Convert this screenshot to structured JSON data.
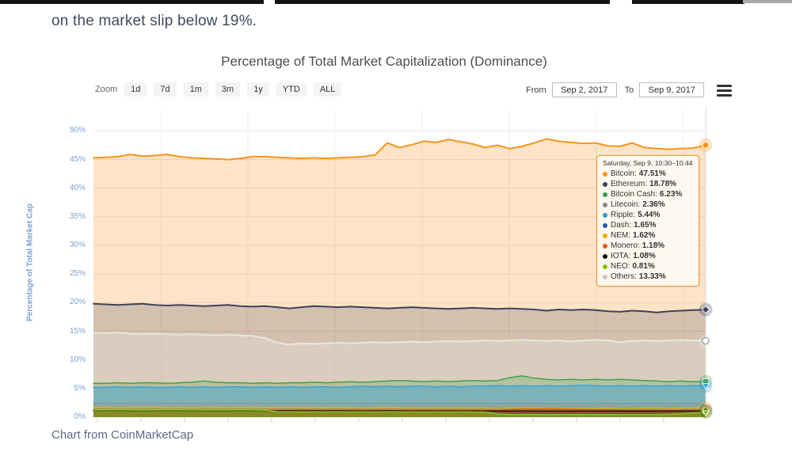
{
  "page": {
    "article_text": "on the market slip below 19%.",
    "footer_text": "Chart from CoinMarketCap"
  },
  "chart": {
    "title": "Percentage of Total Market Capitalization (Dominance)",
    "controls": {
      "zoom_label": "Zoom",
      "zoom_buttons": [
        "1d",
        "7d",
        "1m",
        "3m",
        "1y",
        "YTD",
        "ALL"
      ],
      "from_label": "From",
      "from_value": "Sep 2, 2017",
      "to_label": "To",
      "to_value": "Sep 9, 2017",
      "context_menu_icon": "hamburger-icon"
    },
    "y_axis": {
      "title": "Percentage of Total Market Cap",
      "tick_labels": [
        "0%",
        "5%",
        "10%",
        "15%",
        "20%",
        "25%",
        "30%",
        "35%",
        "40%",
        "45%",
        "50%"
      ]
    }
  },
  "tooltip": {
    "header": "Saturday, Sep 9, 10:30–10:44",
    "items": [
      {
        "name": "Bitcoin",
        "value": "47.51%",
        "color": "#f7941c"
      },
      {
        "name": "Ethereum",
        "value": "18.78%",
        "color": "#3f415c"
      },
      {
        "name": "Bitcoin Cash",
        "value": "6.23%",
        "color": "#35a345"
      },
      {
        "name": "Litecoin",
        "value": "2.36%",
        "color": "#8a8a8a"
      },
      {
        "name": "Ripple",
        "value": "5.44%",
        "color": "#2f9ad0"
      },
      {
        "name": "Dash",
        "value": "1.65%",
        "color": "#2059ae"
      },
      {
        "name": "NEM",
        "value": "1.62%",
        "color": "#f2aa0c"
      },
      {
        "name": "Monero",
        "value": "1.18%",
        "color": "#e4581f"
      },
      {
        "name": "IOTA",
        "value": "1.08%",
        "color": "#111111"
      },
      {
        "name": "NEO",
        "value": "0.81%",
        "color": "#86c100"
      },
      {
        "name": "Others",
        "value": "13.33%",
        "color": "#c8c8c8"
      }
    ]
  },
  "chart_data": {
    "type": "area",
    "title": "Percentage of Total Market Capitalization (Dominance)",
    "xlabel": "",
    "ylabel": "Percentage of Total Market Cap",
    "ylim": [
      0,
      50
    ],
    "x_range": [
      "Sep 2, 2017",
      "Sep 9, 2017"
    ],
    "grid": true,
    "legend_position": "tooltip",
    "series": [
      {
        "name": "Bitcoin",
        "color": "#f7941c",
        "fill_opacity": 0.25,
        "line_width": 2,
        "marker": "circle",
        "end_value": 47.51,
        "values": [
          45.3,
          45.4,
          45.5,
          45.9,
          45.6,
          45.7,
          45.9,
          45.5,
          45.3,
          45.2,
          45.1,
          45.0,
          45.2,
          45.5,
          45.5,
          45.4,
          45.3,
          45.2,
          45.3,
          45.2,
          45.3,
          45.4,
          45.5,
          45.8,
          47.9,
          47.1,
          47.6,
          48.2,
          48.0,
          48.5,
          48.1,
          47.7,
          47.1,
          47.5,
          46.9,
          47.3,
          47.9,
          48.6,
          48.2,
          48.0,
          47.8,
          47.9,
          47.4,
          47.3,
          47.9,
          47.1,
          46.9,
          46.8,
          46.9,
          47.0,
          47.51
        ]
      },
      {
        "name": "Ethereum",
        "color": "#3f415c",
        "fill_opacity": 0.22,
        "line_width": 2,
        "marker": "diamond",
        "end_value": 18.78,
        "values": [
          19.8,
          19.7,
          19.6,
          19.7,
          19.8,
          19.6,
          19.5,
          19.6,
          19.5,
          19.4,
          19.5,
          19.6,
          19.4,
          19.3,
          19.4,
          19.2,
          19.0,
          19.2,
          19.4,
          19.3,
          19.2,
          19.3,
          19.2,
          19.1,
          19.0,
          19.1,
          19.2,
          19.1,
          19.0,
          18.9,
          19.0,
          19.1,
          19.0,
          18.9,
          19.0,
          18.9,
          18.8,
          18.6,
          18.8,
          18.7,
          18.8,
          18.7,
          18.5,
          18.4,
          18.6,
          18.5,
          18.3,
          18.5,
          18.6,
          18.7,
          18.78
        ]
      },
      {
        "name": "Others",
        "color": "#e8e6e0",
        "fill_opacity": 0.35,
        "line_width": 2,
        "marker": "circle-open",
        "end_value": 13.33,
        "values": [
          14.8,
          14.7,
          14.8,
          14.6,
          14.5,
          14.6,
          14.5,
          14.4,
          14.5,
          14.4,
          14.3,
          14.4,
          14.3,
          14.2,
          13.8,
          13.0,
          12.7,
          12.9,
          12.8,
          12.9,
          13.0,
          12.9,
          13.0,
          13.1,
          13.0,
          13.1,
          13.2,
          13.1,
          13.2,
          13.3,
          13.2,
          13.3,
          13.4,
          13.3,
          13.4,
          13.5,
          13.4,
          13.3,
          13.4,
          13.2,
          13.4,
          13.5,
          13.4,
          13.1,
          13.3,
          13.4,
          13.3,
          13.4,
          13.5,
          13.4,
          13.33
        ]
      },
      {
        "name": "Bitcoin Cash",
        "color": "#44a048",
        "fill_opacity": 0.25,
        "line_width": 1.5,
        "marker": "square",
        "end_value": 6.23,
        "values": [
          5.9,
          5.9,
          6.0,
          5.9,
          6.0,
          6.0,
          5.9,
          6.0,
          6.1,
          6.3,
          6.1,
          6.0,
          6.0,
          5.9,
          6.0,
          5.9,
          6.0,
          6.0,
          6.1,
          6.0,
          6.1,
          6.2,
          6.1,
          6.2,
          6.3,
          6.4,
          6.3,
          6.2,
          6.3,
          6.2,
          6.3,
          6.4,
          6.3,
          6.4,
          6.9,
          7.2,
          6.8,
          6.6,
          6.5,
          6.6,
          6.5,
          6.6,
          6.5,
          6.6,
          6.5,
          6.4,
          6.3,
          6.2,
          6.3,
          6.2,
          6.23
        ]
      },
      {
        "name": "Ripple",
        "color": "#37a2d8",
        "fill_opacity": 0.45,
        "line_width": 1.5,
        "marker": "triangle-down",
        "end_value": 5.44,
        "values": [
          5.2,
          5.2,
          5.3,
          5.2,
          5.3,
          5.2,
          5.2,
          5.3,
          5.2,
          5.3,
          5.2,
          5.3,
          5.3,
          5.2,
          5.3,
          5.2,
          5.3,
          5.2,
          5.3,
          5.3,
          5.2,
          5.3,
          5.4,
          5.3,
          5.4,
          5.3,
          5.4,
          5.4,
          5.3,
          5.4,
          5.3,
          5.4,
          5.4,
          5.5,
          5.4,
          5.5,
          5.4,
          5.5,
          5.4,
          5.5,
          5.6,
          5.5,
          5.4,
          5.5,
          5.4,
          5.5,
          5.4,
          5.5,
          5.4,
          5.5,
          5.44
        ]
      },
      {
        "name": "Litecoin",
        "color": "#909090",
        "fill_opacity": 0.25,
        "line_width": 1,
        "marker": "none",
        "end_value": 2.36,
        "values": [
          2.45,
          2.4,
          2.42,
          2.4,
          2.38,
          2.4,
          2.42,
          2.4,
          2.4,
          2.38,
          2.4,
          2.42,
          2.4,
          2.4,
          2.38,
          2.4,
          2.4,
          2.42,
          2.4,
          2.38,
          2.4,
          2.4,
          2.42,
          2.4,
          2.4,
          2.38,
          2.4,
          2.42,
          2.4,
          2.4,
          2.38,
          2.4,
          2.4,
          2.42,
          2.4,
          2.4,
          2.38,
          2.4,
          2.42,
          2.4,
          2.4,
          2.38,
          2.4,
          2.4,
          2.42,
          2.4,
          2.38,
          2.4,
          2.4,
          2.38,
          2.36
        ]
      },
      {
        "name": "Dash",
        "color": "#2059ae",
        "fill_opacity": 0.35,
        "line_width": 1,
        "marker": "none",
        "end_value": 1.65,
        "values": [
          1.72,
          1.7,
          1.71,
          1.7,
          1.69,
          1.7,
          1.71,
          1.7,
          1.7,
          1.69,
          1.7,
          1.71,
          1.7,
          1.7,
          1.69,
          1.7,
          1.7,
          1.71,
          1.7,
          1.69,
          1.7,
          1.7,
          1.71,
          1.7,
          1.7,
          1.69,
          1.7,
          1.71,
          1.7,
          1.7,
          1.69,
          1.7,
          1.7,
          1.71,
          1.7,
          1.7,
          1.69,
          1.7,
          1.71,
          1.7,
          1.7,
          1.69,
          1.68,
          1.7,
          1.69,
          1.68,
          1.67,
          1.66,
          1.67,
          1.66,
          1.65
        ]
      },
      {
        "name": "NEM",
        "color": "#f2aa0c",
        "fill_opacity": 0.5,
        "line_width": 1.5,
        "marker": "diamond",
        "end_value": 1.62,
        "values": [
          1.72,
          1.73,
          1.72,
          1.71,
          1.72,
          1.73,
          1.72,
          1.71,
          1.7,
          1.71,
          1.72,
          1.71,
          1.7,
          1.71,
          1.7,
          1.69,
          1.7,
          1.71,
          1.7,
          1.69,
          1.7,
          1.69,
          1.68,
          1.69,
          1.7,
          1.69,
          1.68,
          1.67,
          1.68,
          1.67,
          1.66,
          1.67,
          1.66,
          1.65,
          1.66,
          1.67,
          1.66,
          1.65,
          1.64,
          1.65,
          1.64,
          1.63,
          1.64,
          1.63,
          1.62,
          1.63,
          1.62,
          1.61,
          1.62,
          1.63,
          1.62
        ]
      },
      {
        "name": "Monero",
        "color": "#e4581f",
        "fill_opacity": 0.5,
        "line_width": 1.5,
        "marker": "none",
        "end_value": 1.18,
        "values": [
          1.25,
          1.24,
          1.25,
          1.26,
          1.25,
          1.24,
          1.25,
          1.24,
          1.23,
          1.24,
          1.25,
          1.24,
          1.23,
          1.24,
          1.23,
          1.22,
          1.23,
          1.24,
          1.23,
          1.22,
          1.23,
          1.22,
          1.23,
          1.22,
          1.21,
          1.22,
          1.23,
          1.22,
          1.21,
          1.22,
          1.21,
          1.22,
          1.21,
          1.22,
          1.3,
          1.42,
          1.38,
          1.45,
          1.4,
          1.35,
          1.3,
          1.28,
          1.25,
          1.22,
          1.2,
          1.19,
          1.2,
          1.19,
          1.18,
          1.19,
          1.18
        ]
      },
      {
        "name": "IOTA",
        "color": "#1a1a1a",
        "fill_opacity": 0.4,
        "line_width": 1.5,
        "marker": "circle",
        "end_value": 1.08,
        "values": [
          1.12,
          1.11,
          1.12,
          1.11,
          1.1,
          1.11,
          1.12,
          1.11,
          1.1,
          1.11,
          1.1,
          1.09,
          1.1,
          1.11,
          1.1,
          1.09,
          1.1,
          1.09,
          1.1,
          1.09,
          1.1,
          1.09,
          1.08,
          1.09,
          1.1,
          1.09,
          1.08,
          1.09,
          1.08,
          1.09,
          1.08,
          1.09,
          1.08,
          1.07,
          1.08,
          1.09,
          1.08,
          1.07,
          1.08,
          1.07,
          1.08,
          1.07,
          1.08,
          1.07,
          1.06,
          1.07,
          1.08,
          1.07,
          1.08,
          1.09,
          1.08
        ]
      },
      {
        "name": "NEO",
        "color": "#8cc41c",
        "fill_opacity": 0.5,
        "line_width": 1.5,
        "marker": "triangle-down",
        "end_value": 0.81,
        "values": [
          1.3,
          1.3,
          1.31,
          1.3,
          1.29,
          1.3,
          1.31,
          1.3,
          1.3,
          1.29,
          1.3,
          1.3,
          1.31,
          1.3,
          1.25,
          0.95,
          0.92,
          0.93,
          0.92,
          0.93,
          0.92,
          0.93,
          0.92,
          0.91,
          0.92,
          0.93,
          0.92,
          0.91,
          0.92,
          0.91,
          0.92,
          0.91,
          0.9,
          0.55,
          0.45,
          0.44,
          0.45,
          0.44,
          0.45,
          0.44,
          0.45,
          0.44,
          0.45,
          0.44,
          0.45,
          0.46,
          0.45,
          0.5,
          0.6,
          0.7,
          0.81
        ]
      }
    ]
  }
}
